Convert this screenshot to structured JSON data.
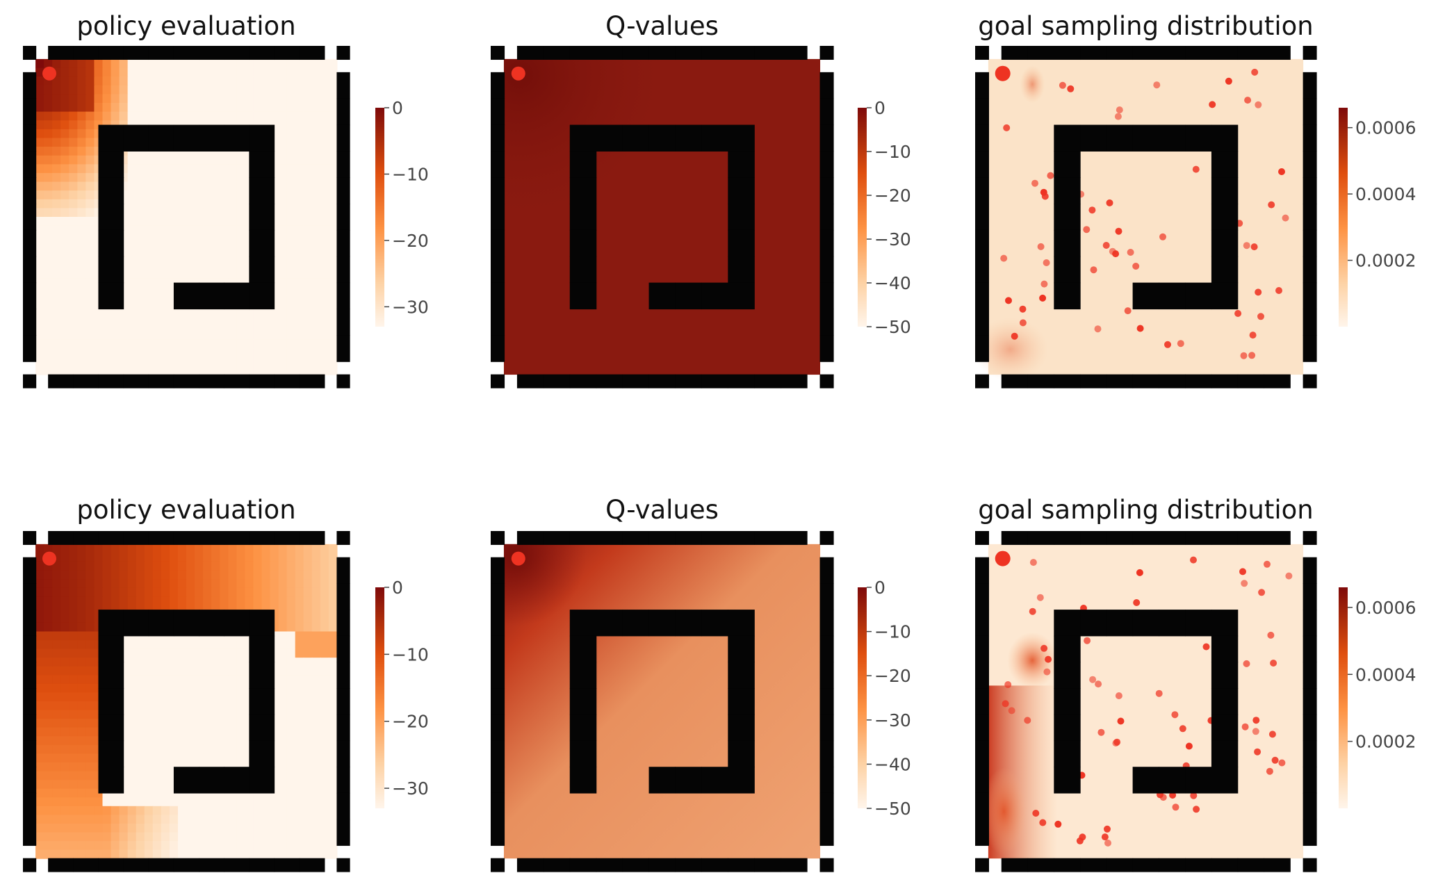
{
  "panels": [
    {
      "title": "policy evaluation",
      "kind": "grid",
      "row": 0,
      "col": 0,
      "start_marker": {
        "x": 1,
        "y": 1
      },
      "colorbar": {
        "min": -33,
        "max": 0,
        "ticks": [
          "0",
          "−10",
          "−20",
          "−30"
        ],
        "tick_values": [
          0,
          -10,
          -20,
          -30
        ]
      },
      "colors": {
        "dark": "#7f0a0a",
        "light": "#fff5eb"
      }
    },
    {
      "title": "Q-values",
      "kind": "smooth",
      "row": 0,
      "col": 1,
      "start_marker": {
        "x": 1,
        "y": 1
      },
      "colorbar": {
        "min": -50,
        "max": 0,
        "ticks": [
          "0",
          "−10",
          "−20",
          "−30",
          "−40",
          "−50"
        ],
        "tick_values": [
          0,
          -10,
          -20,
          -30,
          -40,
          -50
        ]
      },
      "fill": "#8a1a10"
    },
    {
      "title": "goal sampling distribution",
      "kind": "density",
      "row": 0,
      "col": 2,
      "start_marker": {
        "x": 1,
        "y": 1
      },
      "colorbar": {
        "min": 0,
        "max": 0.00066,
        "ticks": [
          "0.0006",
          "0.0004",
          "0.0002"
        ],
        "tick_values": [
          0.0006,
          0.0004,
          0.0002
        ]
      },
      "fill": "#fbe3c8"
    },
    {
      "title": "policy evaluation",
      "kind": "grid",
      "row": 1,
      "col": 0,
      "start_marker": {
        "x": 1,
        "y": 1
      },
      "colorbar": {
        "min": -33,
        "max": 0,
        "ticks": [
          "0",
          "−10",
          "−20",
          "−30"
        ],
        "tick_values": [
          0,
          -10,
          -20,
          -30
        ]
      },
      "colors": {
        "dark": "#9a1b12",
        "light": "#fff5eb"
      }
    },
    {
      "title": "Q-values",
      "kind": "smooth",
      "row": 1,
      "col": 1,
      "start_marker": {
        "x": 1,
        "y": 1
      },
      "colorbar": {
        "min": -50,
        "max": 0,
        "ticks": [
          "0",
          "−10",
          "−20",
          "−30",
          "−40",
          "−50"
        ],
        "tick_values": [
          0,
          -10,
          -20,
          -30,
          -40,
          -50
        ]
      },
      "fill": "#ec9c6e"
    },
    {
      "title": "goal sampling distribution",
      "kind": "density",
      "row": 1,
      "col": 2,
      "start_marker": {
        "x": 1,
        "y": 1
      },
      "colorbar": {
        "min": 0,
        "max": 0.00066,
        "ticks": [
          "0.0006",
          "0.0004",
          "0.0002"
        ],
        "tick_values": [
          0.0006,
          0.0004,
          0.0002
        ]
      },
      "fill": "#fde8d2"
    }
  ],
  "chart_data": [
    {
      "type": "heatmap",
      "title": "policy evaluation",
      "colorbar_range": [
        -33,
        0
      ],
      "colorbar_ticks": [
        0,
        -10,
        -20,
        -30
      ]
    },
    {
      "type": "heatmap",
      "title": "Q-values",
      "colorbar_range": [
        -50,
        0
      ],
      "colorbar_ticks": [
        0,
        -10,
        -20,
        -30,
        -40,
        -50
      ]
    },
    {
      "type": "heatmap",
      "title": "goal sampling distribution",
      "colorbar_range": [
        0,
        0.00066
      ],
      "colorbar_ticks": [
        0.0006,
        0.0004,
        0.0002
      ]
    },
    {
      "type": "heatmap",
      "title": "policy evaluation",
      "colorbar_range": [
        -33,
        0
      ],
      "colorbar_ticks": [
        0,
        -10,
        -20,
        -30
      ]
    },
    {
      "type": "heatmap",
      "title": "Q-values",
      "colorbar_range": [
        -50,
        0
      ],
      "colorbar_ticks": [
        0,
        -10,
        -20,
        -30,
        -40,
        -50
      ]
    },
    {
      "type": "heatmap",
      "title": "goal sampling distribution",
      "colorbar_range": [
        0,
        0.00066
      ],
      "colorbar_ticks": [
        0.0006,
        0.0004,
        0.0002
      ]
    }
  ],
  "colors": {
    "wall": "#050505",
    "marker": "#ee3322",
    "cmap": [
      "#fff5eb",
      "#fdd2a5",
      "#fd9243",
      "#df4f0f",
      "#a3270b",
      "#7f0a0a"
    ]
  }
}
